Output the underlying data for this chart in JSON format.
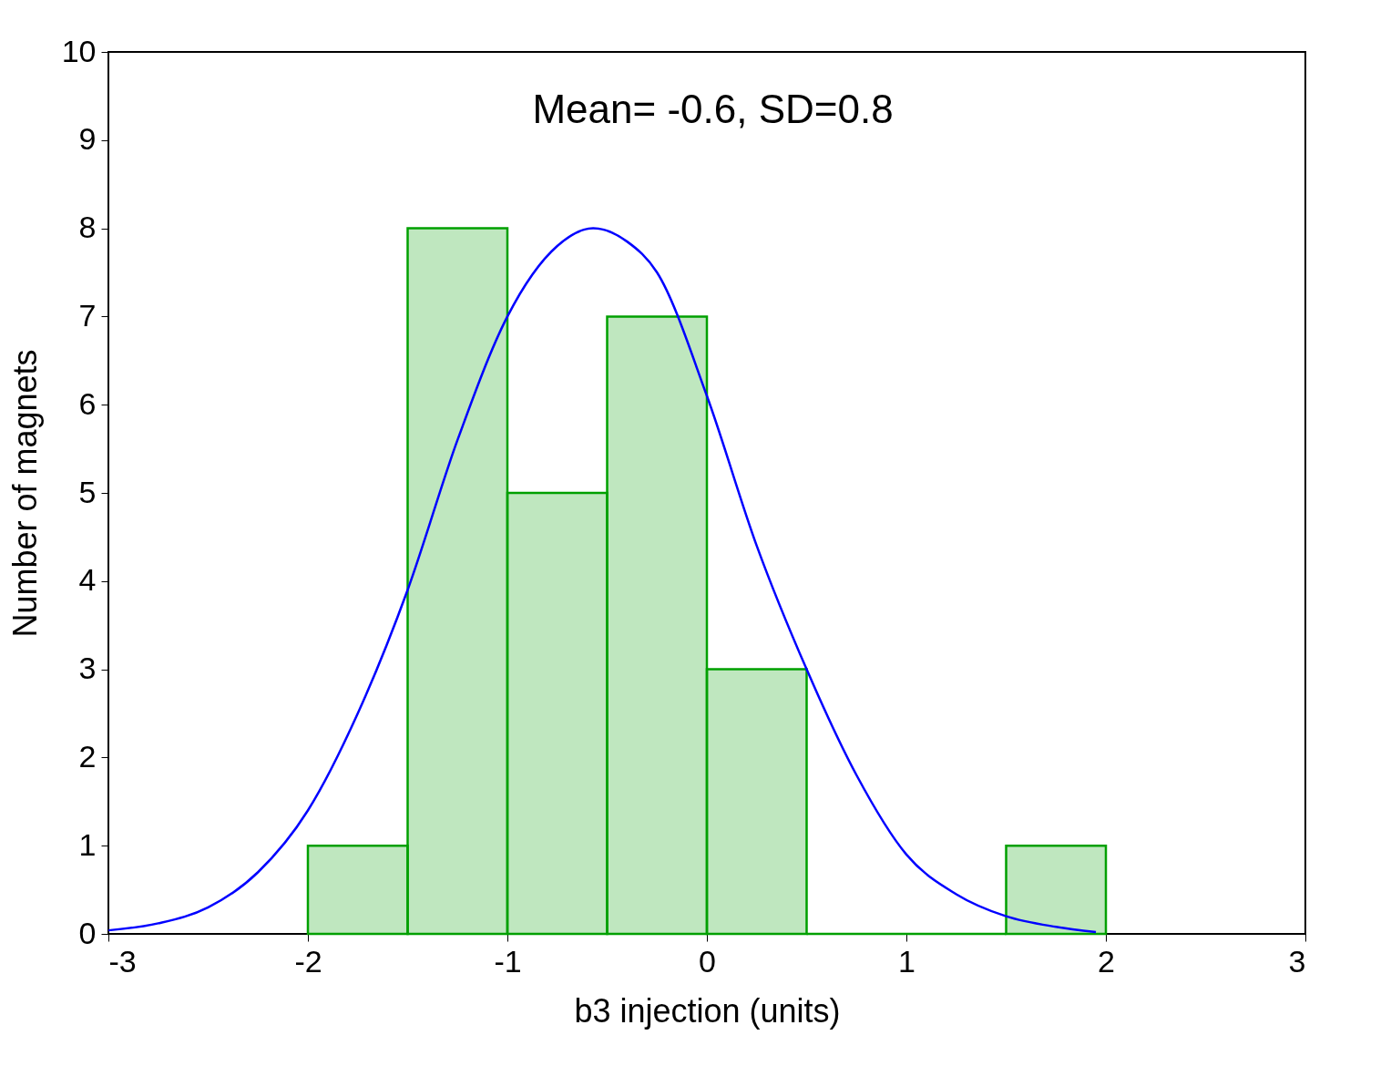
{
  "chart_data": {
    "type": "histogram",
    "xlabel": "b3 injection (units)",
    "ylabel": "Number of magnets",
    "annotations": [
      "Mean= -0.6, SD=0.8"
    ],
    "bins": [
      -2,
      -1.5,
      -1,
      -0.5,
      0,
      0.5,
      1,
      1.5,
      2
    ],
    "values": [
      1,
      8,
      5,
      7,
      3,
      0,
      0,
      1
    ],
    "color": "#00a000",
    "series": [
      {
        "type": "line",
        "color": "#0000ff",
        "x": [
          -3,
          -2.75,
          -2.5,
          -2.25,
          -2,
          -1.75,
          -1.5,
          -1.25,
          -1,
          -0.75,
          -0.57,
          -0.4,
          -0.25,
          0,
          0.25,
          0.5,
          0.75,
          1,
          1.25,
          1.5,
          1.75,
          1.95
        ],
        "values": [
          0.04,
          0.12,
          0.3,
          0.7,
          1.4,
          2.5,
          3.9,
          5.6,
          7.0,
          7.8,
          8.0,
          7.85,
          7.5,
          6.1,
          4.4,
          3.0,
          1.8,
          0.9,
          0.45,
          0.2,
          0.08,
          0.02
        ]
      }
    ],
    "xlim": [
      -3,
      3
    ],
    "xticks": [
      -3,
      -2,
      -1,
      0,
      1,
      2,
      3
    ],
    "ylim": [
      0,
      10
    ],
    "yticks": [
      0,
      1,
      2,
      3,
      4,
      5,
      6,
      7,
      8,
      9,
      10
    ],
    "grid": false
  }
}
